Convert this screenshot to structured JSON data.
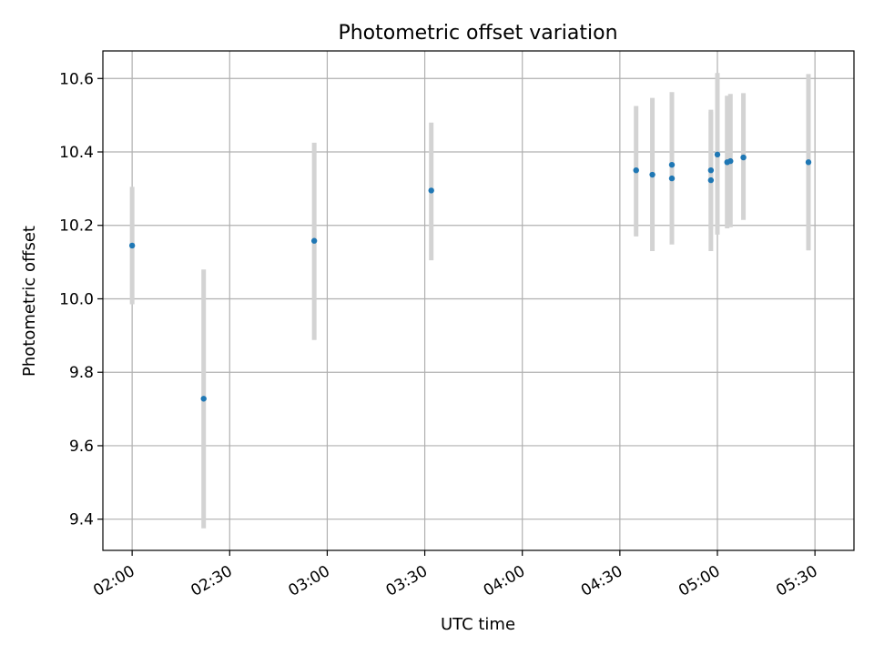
{
  "colors": {
    "point": "#1f77b4",
    "errorbar": "#d3d3d3",
    "grid": "#b0b0b0",
    "axes": "#000000"
  },
  "chart_data": {
    "type": "scatter",
    "title": "Photometric offset variation",
    "xlabel": "UTC time",
    "ylabel": "Photometric offset",
    "x_axis_type": "time",
    "xlim": [
      "01:51",
      "05:42"
    ],
    "ylim": [
      9.315,
      10.675
    ],
    "xticks": [
      "02:00",
      "02:30",
      "03:00",
      "03:30",
      "04:00",
      "04:30",
      "05:00",
      "05:30"
    ],
    "yticks": [
      9.4,
      9.6,
      9.8,
      10.0,
      10.2,
      10.4,
      10.6
    ],
    "ytick_labels": [
      "9.4",
      "9.6",
      "9.8",
      "10.0",
      "10.2",
      "10.4",
      "10.6"
    ],
    "grid": true,
    "legend": false,
    "points": [
      {
        "x": "02:00",
        "y": 10.145,
        "ylow": 9.985,
        "yhigh": 10.305
      },
      {
        "x": "02:22",
        "y": 9.728,
        "ylow": 9.375,
        "yhigh": 10.08
      },
      {
        "x": "02:56",
        "y": 10.158,
        "ylow": 9.888,
        "yhigh": 10.425
      },
      {
        "x": "03:32",
        "y": 10.295,
        "ylow": 10.105,
        "yhigh": 10.48
      },
      {
        "x": "04:35",
        "y": 10.35,
        "ylow": 10.17,
        "yhigh": 10.525
      },
      {
        "x": "04:40",
        "y": 10.338,
        "ylow": 10.13,
        "yhigh": 10.547
      },
      {
        "x": "04:46",
        "y": 10.365,
        "ylow": 10.165,
        "yhigh": 10.563
      },
      {
        "x": "04:46",
        "y": 10.328,
        "ylow": 10.148,
        "yhigh": 10.508
      },
      {
        "x": "04:58",
        "y": 10.323,
        "ylow": 10.13,
        "yhigh": 10.515
      },
      {
        "x": "04:58",
        "y": 10.35,
        "ylow": 10.19,
        "yhigh": 10.51
      },
      {
        "x": "05:00",
        "y": 10.393,
        "ylow": 10.175,
        "yhigh": 10.615
      },
      {
        "x": "05:03",
        "y": 10.372,
        "ylow": 10.192,
        "yhigh": 10.553
      },
      {
        "x": "05:04",
        "y": 10.375,
        "ylow": 10.195,
        "yhigh": 10.558
      },
      {
        "x": "05:08",
        "y": 10.385,
        "ylow": 10.215,
        "yhigh": 10.56
      },
      {
        "x": "05:28",
        "y": 10.372,
        "ylow": 10.132,
        "yhigh": 10.612
      }
    ]
  }
}
